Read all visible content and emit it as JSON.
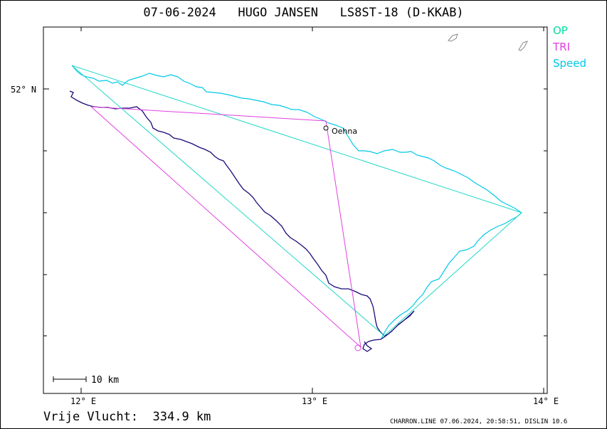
{
  "header": {
    "title": "07-06-2024   HUGO JANSEN   LS8ST-18 (D-KKAB)"
  },
  "legend": [
    {
      "label": "OP",
      "color": "#00e0a0"
    },
    {
      "label": "TRI",
      "color": "#e040e0"
    },
    {
      "label": "Speed",
      "color": "#00c8e8"
    }
  ],
  "axes": {
    "y_label": "52° N",
    "x_labels": [
      "12° E",
      "13° E",
      "14° E"
    ]
  },
  "waypoint": {
    "name": "Oehna"
  },
  "scale_bar": {
    "label": "10  km"
  },
  "flight": {
    "distance_text": "Vrije Vlucht:  334.9 km"
  },
  "footer": {
    "text": "CHARRON.LINE 07.06.2024, 20:58:51, DISLIN 10.6"
  },
  "colors": {
    "track": "#1a0a78",
    "op": "#20d8c8",
    "tri": "#e040e0",
    "speed": "#00c8e8",
    "lakes": "#888888"
  }
}
